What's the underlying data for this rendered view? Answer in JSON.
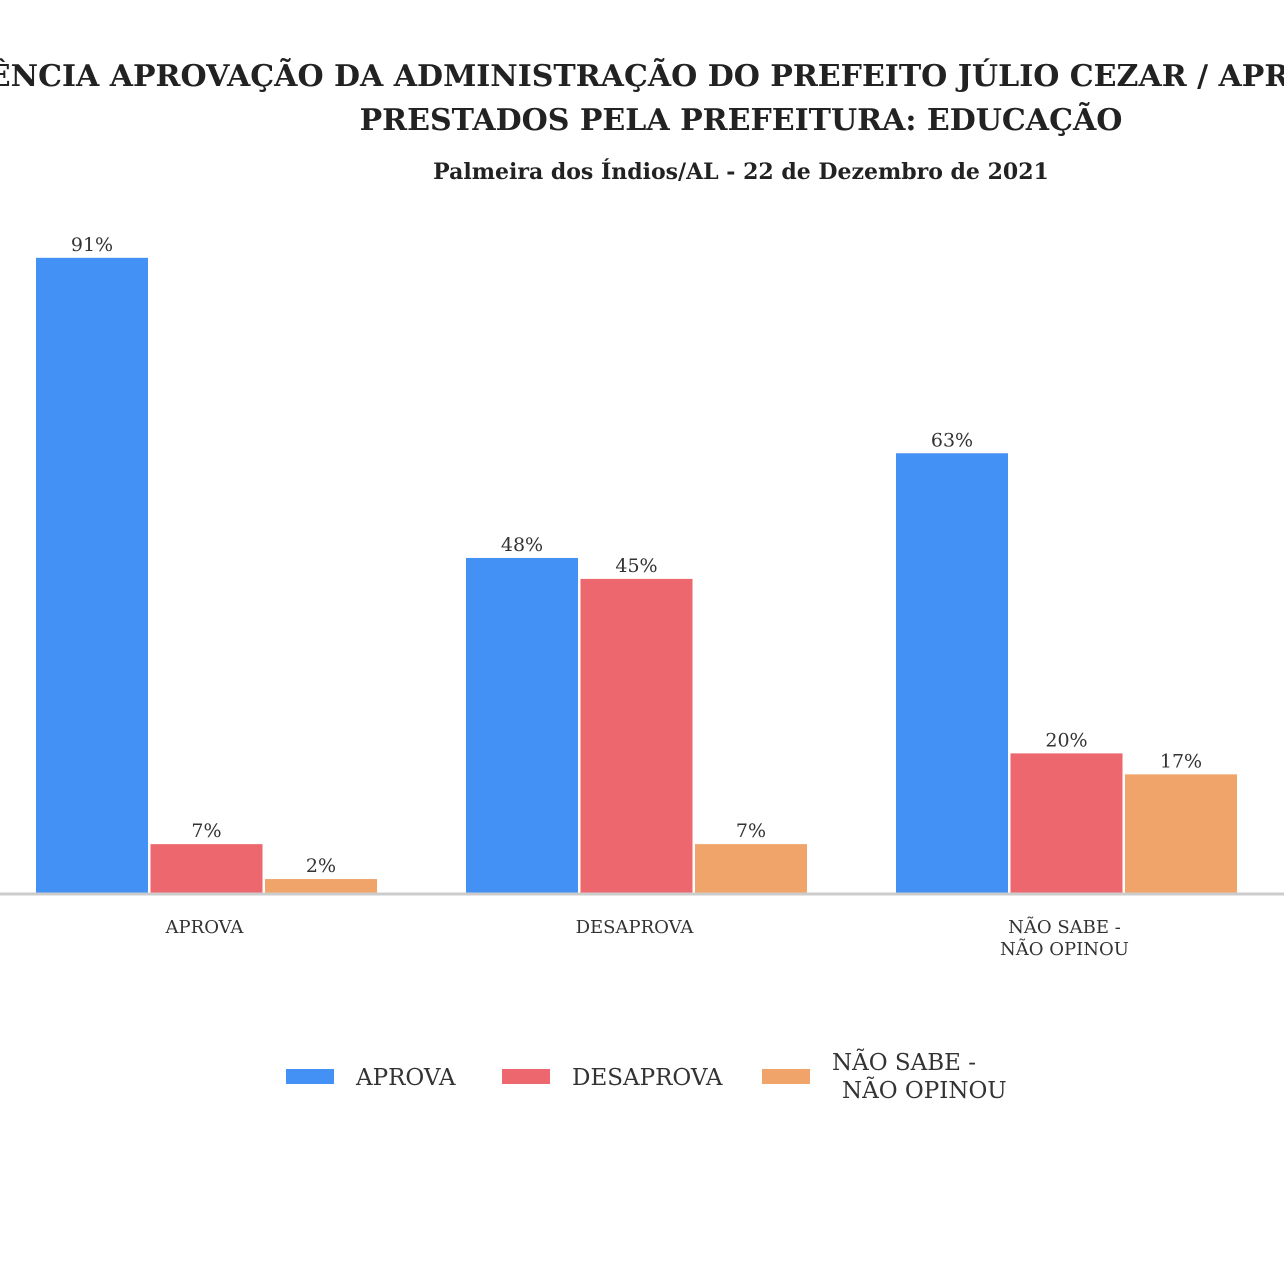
{
  "chart_data": {
    "type": "bar",
    "title_line1": "SFERÊNCIA APROVAÇÃO DA ADMINISTRAÇÃO DO PREFEITO JÚLIO CEZAR / APROVAÇ",
    "title_line2": "PRESTADOS PELA PREFEITURA: EDUCAÇÃO",
    "subtitle": "Palmeira dos Índios/AL - 22 de Dezembro de 2021",
    "categories": [
      [
        "APROVA"
      ],
      [
        "DESAPROVA"
      ],
      [
        "NÃO SABE  -",
        "NÃO OPINOU"
      ]
    ],
    "series": [
      {
        "name": "APROVA",
        "legend_lines": [
          "APROVA"
        ],
        "color": "#4391f5",
        "values": [
          91,
          48,
          63
        ]
      },
      {
        "name": "DESAPROVA",
        "legend_lines": [
          "DESAPROVA"
        ],
        "color": "#ed676e",
        "values": [
          7,
          45,
          20
        ]
      },
      {
        "name": "NÃO SABE  - NÃO OPINOU",
        "legend_lines": [
          "NÃO SABE  -",
          "NÃO OPINOU"
        ],
        "color": "#f0a46a",
        "values": [
          2,
          7,
          17
        ]
      }
    ],
    "value_suffix": "%",
    "ylim": [
      0,
      100
    ],
    "grid": false,
    "legend_position": "bottom"
  }
}
